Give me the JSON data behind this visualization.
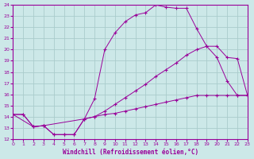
{
  "xlabel": "Windchill (Refroidissement éolien,°C)",
  "xlim": [
    0,
    23
  ],
  "ylim": [
    12,
    24
  ],
  "yticks": [
    12,
    13,
    14,
    15,
    16,
    17,
    18,
    19,
    20,
    21,
    22,
    23,
    24
  ],
  "xticks": [
    0,
    1,
    2,
    3,
    4,
    5,
    6,
    7,
    8,
    9,
    10,
    11,
    12,
    13,
    14,
    15,
    16,
    17,
    18,
    19,
    20,
    21,
    22,
    23
  ],
  "bg_color": "#cce8e8",
  "grid_color": "#aacccc",
  "line_color": "#990099",
  "line1_x": [
    0,
    1,
    2,
    3,
    4,
    5,
    6,
    7,
    8,
    9,
    10,
    11,
    12,
    13,
    14,
    15,
    16,
    17,
    18,
    19,
    20,
    21,
    22,
    23
  ],
  "line1_y": [
    14.2,
    14.2,
    13.1,
    13.2,
    12.4,
    12.4,
    12.4,
    13.8,
    15.6,
    20.0,
    21.5,
    22.5,
    23.1,
    23.3,
    24.0,
    23.8,
    23.7,
    23.7,
    21.9,
    20.3,
    19.3,
    17.2,
    15.9,
    15.9
  ],
  "line2_x": [
    0,
    2,
    3,
    7,
    8,
    9,
    10,
    11,
    12,
    13,
    14,
    15,
    16,
    17,
    18,
    19,
    20,
    21,
    22,
    23
  ],
  "line2_y": [
    14.2,
    13.1,
    13.2,
    13.8,
    14.0,
    14.5,
    15.1,
    15.7,
    16.3,
    16.9,
    17.6,
    18.2,
    18.8,
    19.5,
    20.0,
    20.3,
    20.3,
    19.3,
    19.2,
    15.9
  ],
  "line3_x": [
    0,
    1,
    2,
    3,
    4,
    5,
    6,
    7,
    8,
    9,
    10,
    11,
    12,
    13,
    14,
    15,
    16,
    17,
    18,
    19,
    20,
    21,
    22,
    23
  ],
  "line3_y": [
    14.2,
    14.2,
    13.1,
    13.2,
    12.4,
    12.4,
    12.4,
    13.8,
    14.0,
    14.2,
    14.3,
    14.5,
    14.7,
    14.9,
    15.1,
    15.3,
    15.5,
    15.7,
    15.9,
    15.9,
    15.9,
    15.9,
    15.9,
    15.9
  ]
}
